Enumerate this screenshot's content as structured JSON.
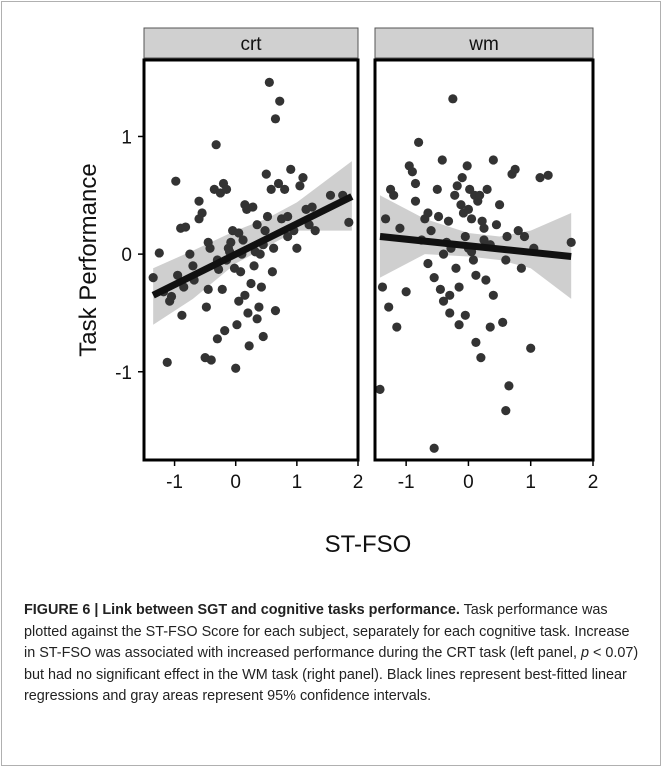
{
  "chart_data": {
    "type": "scatter",
    "facets": [
      {
        "name": "crt",
        "x": [
          -1.35,
          -1.25,
          -1.18,
          -1.12,
          -1.08,
          -1.05,
          -0.98,
          -0.95,
          -0.9,
          -0.88,
          -0.85,
          -0.82,
          -0.75,
          -0.7,
          -0.68,
          -0.6,
          -0.55,
          -0.5,
          -0.48,
          -0.45,
          -0.42,
          -0.4,
          -0.35,
          -0.32,
          -0.3,
          -0.28,
          -0.25,
          -0.22,
          -0.2,
          -0.18,
          -0.15,
          -0.12,
          -0.1,
          -0.08,
          -0.05,
          -0.02,
          0.0,
          0.02,
          0.05,
          0.08,
          0.1,
          0.12,
          0.15,
          0.18,
          0.2,
          0.22,
          0.25,
          0.28,
          0.3,
          0.32,
          0.35,
          0.38,
          0.4,
          0.42,
          0.45,
          0.48,
          0.5,
          0.52,
          0.55,
          0.58,
          0.6,
          0.62,
          0.65,
          0.7,
          0.72,
          0.75,
          0.8,
          0.85,
          0.9,
          0.95,
          1.0,
          1.05,
          1.1,
          1.15,
          1.2,
          1.25,
          1.3,
          1.55,
          1.75,
          1.85,
          -0.6,
          -0.3,
          0.15,
          0.45,
          0.65,
          0.85,
          -0.15,
          0.05,
          0.35,
          -0.45
        ],
        "y": [
          -0.2,
          0.01,
          -0.32,
          -0.92,
          -0.4,
          -0.36,
          0.62,
          -0.18,
          0.22,
          -0.52,
          -0.28,
          0.23,
          0.0,
          -0.1,
          -0.22,
          0.3,
          0.35,
          -0.88,
          -0.45,
          -0.3,
          0.05,
          -0.9,
          0.55,
          0.93,
          -0.72,
          -0.13,
          0.52,
          -0.3,
          0.6,
          -0.65,
          0.55,
          0.05,
          0.02,
          0.1,
          0.2,
          -0.12,
          -0.97,
          -0.6,
          -0.4,
          -0.15,
          0.0,
          0.12,
          -0.35,
          0.38,
          -0.5,
          -0.78,
          -0.25,
          0.4,
          -0.1,
          0.02,
          -0.55,
          -0.45,
          0.0,
          -0.28,
          -0.7,
          0.2,
          0.68,
          0.32,
          1.46,
          0.55,
          -0.15,
          0.05,
          1.15,
          0.6,
          1.3,
          0.3,
          0.55,
          0.32,
          0.72,
          0.2,
          0.05,
          0.58,
          0.65,
          0.38,
          0.25,
          0.4,
          0.2,
          0.5,
          0.5,
          0.27,
          0.45,
          -0.05,
          0.42,
          0.08,
          -0.48,
          0.15,
          -0.05,
          0.18,
          0.25,
          0.1
        ],
        "fit": {
          "x": [
            -1.35,
            1.9
          ],
          "y": [
            -0.35,
            0.49
          ]
        },
        "ci": {
          "x": [
            -1.35,
            -0.7,
            0.0,
            0.5,
            1.0,
            1.9
          ],
          "upper": [
            -0.12,
            0.03,
            0.2,
            0.3,
            0.44,
            0.79
          ],
          "lower": [
            -0.6,
            -0.38,
            -0.08,
            0.06,
            0.2,
            0.2
          ]
        }
      },
      {
        "name": "wm",
        "x": [
          -1.42,
          -1.38,
          -1.33,
          -1.28,
          -1.25,
          -1.2,
          -1.15,
          -1.1,
          -0.95,
          -0.9,
          -0.85,
          -0.8,
          -0.75,
          -0.7,
          -0.65,
          -0.6,
          -0.55,
          -0.5,
          -0.48,
          -0.45,
          -0.42,
          -0.4,
          -0.35,
          -0.32,
          -0.3,
          -0.28,
          -0.25,
          -0.22,
          -0.2,
          -0.18,
          -0.15,
          -0.12,
          -0.1,
          -0.08,
          -0.05,
          -0.02,
          0.0,
          0.02,
          0.05,
          0.08,
          0.1,
          0.12,
          0.15,
          0.18,
          0.2,
          0.22,
          0.25,
          0.28,
          0.3,
          0.35,
          0.4,
          0.45,
          0.5,
          0.55,
          0.6,
          0.62,
          0.65,
          0.7,
          0.75,
          0.8,
          0.85,
          0.9,
          1.0,
          1.05,
          1.15,
          1.28,
          1.65,
          -0.55,
          -0.3,
          0.05,
          0.25,
          -0.65,
          -0.15,
          0.0,
          0.35,
          -0.05,
          0.12,
          -0.4,
          0.4,
          0.6,
          -0.85,
          -1.0
        ],
        "y": [
          -1.15,
          -0.28,
          0.3,
          -0.45,
          0.55,
          0.5,
          -0.62,
          0.22,
          0.75,
          0.7,
          0.45,
          0.95,
          0.12,
          0.3,
          0.35,
          0.2,
          -1.65,
          0.55,
          0.32,
          -0.3,
          0.8,
          -0.4,
          0.1,
          0.28,
          -0.5,
          0.05,
          1.32,
          0.5,
          -0.12,
          0.58,
          -0.6,
          0.42,
          0.65,
          0.35,
          0.15,
          0.75,
          0.05,
          0.55,
          0.3,
          -0.05,
          0.5,
          -0.75,
          0.45,
          0.5,
          -0.88,
          0.28,
          0.12,
          -0.22,
          0.55,
          -0.62,
          0.8,
          0.25,
          0.42,
          -0.58,
          -1.33,
          0.15,
          -1.12,
          0.68,
          0.72,
          0.2,
          -0.12,
          0.15,
          -0.8,
          0.05,
          0.65,
          0.67,
          0.1,
          -0.2,
          -0.35,
          0.02,
          0.22,
          -0.08,
          -0.28,
          0.38,
          0.08,
          -0.52,
          -0.18,
          0.0,
          -0.35,
          -0.05,
          0.6,
          -0.32
        ],
        "fit": {
          "x": [
            -1.42,
            1.65
          ],
          "y": [
            0.15,
            -0.02
          ]
        },
        "ci": {
          "x": [
            -1.42,
            -0.7,
            0.0,
            0.5,
            1.0,
            1.65
          ],
          "upper": [
            0.5,
            0.3,
            0.18,
            0.15,
            0.2,
            0.35
          ],
          "lower": [
            -0.2,
            0.0,
            -0.02,
            -0.05,
            -0.12,
            -0.38
          ]
        }
      }
    ],
    "xlabel": "ST-FSO",
    "ylabel": "Task Performance",
    "xlim": [
      -1.5,
      2.0
    ],
    "ylim": [
      -1.75,
      1.65
    ],
    "xticks": [
      -1,
      0,
      1,
      2
    ],
    "yticks": [
      -1,
      0,
      1
    ],
    "xtick_labels": [
      "-1",
      "0",
      "1",
      "2"
    ],
    "ytick_labels": [
      "-1",
      "0",
      "1"
    ],
    "grid": false,
    "colors": {
      "point": "#333333",
      "fit": "#111111",
      "ci": "#cfcfcf",
      "strip": "#d0d0d0"
    }
  },
  "caption": {
    "label": "FIGURE 6 | Link between SGT and cognitive tasks performance.",
    "text_1": " Task performance was plotted against the ST-FSO Score for each subject, separately for each cognitive task. Increase in ST-FSO was associated with increased performance during the CRT task (left panel, ",
    "pvar": "p",
    "text_2": " < 0.07) but had no significant effect in the WM task (right panel). Black lines represent best-fitted linear regressions and gray areas represent 95% confidence intervals."
  }
}
